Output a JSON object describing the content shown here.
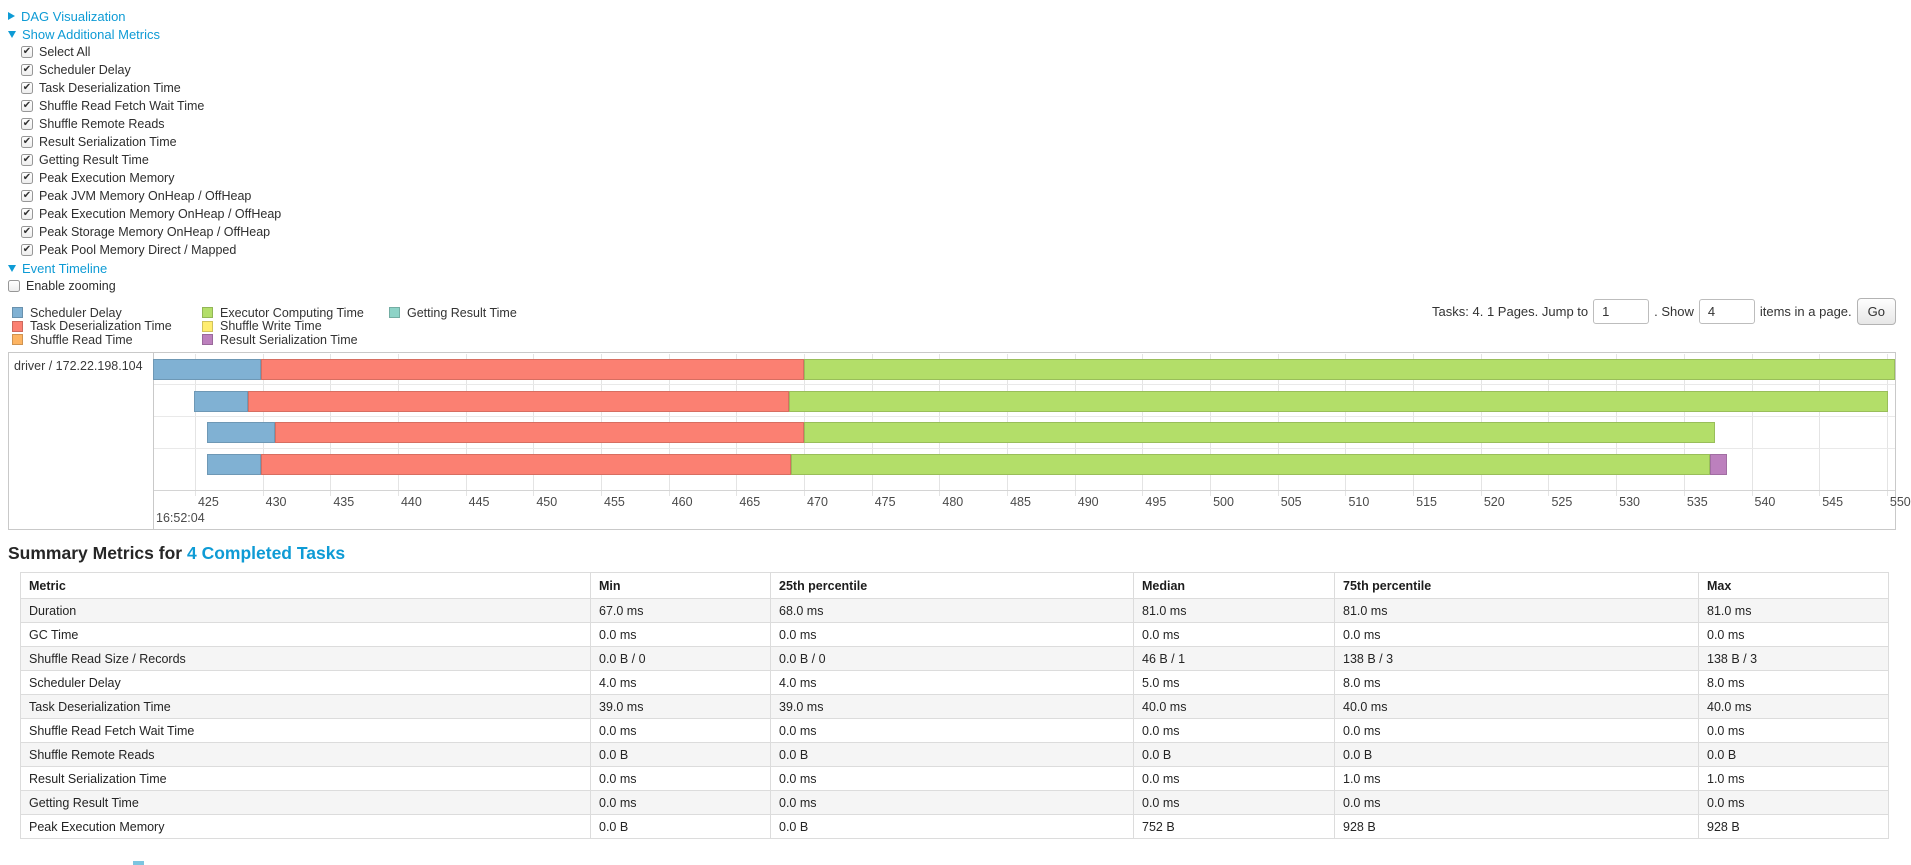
{
  "colors": {
    "link": "#0e9bd5",
    "scheduler_delay": "#80B1D3",
    "task_deserialization": "#FB8072",
    "shuffle_read": "#FDB462",
    "executor_computing": "#B3DE69",
    "shuffle_write": "#FFED6F",
    "result_serialization": "#BC80BD",
    "getting_result": "#8DD3C7"
  },
  "controls": {
    "dag_label": "DAG Visualization",
    "metrics_label": "Show Additional Metrics",
    "event_timeline_label": "Event Timeline",
    "enable_zooming": {
      "label": "Enable zooming",
      "checked": false
    },
    "metric_checkboxes": [
      {
        "label": "Select All",
        "checked": true
      },
      {
        "label": "Scheduler Delay",
        "checked": true
      },
      {
        "label": "Task Deserialization Time",
        "checked": true
      },
      {
        "label": "Shuffle Read Fetch Wait Time",
        "checked": true
      },
      {
        "label": "Shuffle Remote Reads",
        "checked": true
      },
      {
        "label": "Result Serialization Time",
        "checked": true
      },
      {
        "label": "Getting Result Time",
        "checked": true
      },
      {
        "label": "Peak Execution Memory",
        "checked": true
      },
      {
        "label": "Peak JVM Memory OnHeap / OffHeap",
        "checked": true
      },
      {
        "label": "Peak Execution Memory OnHeap / OffHeap",
        "checked": true
      },
      {
        "label": "Peak Storage Memory OnHeap / OffHeap",
        "checked": true
      },
      {
        "label": "Peak Pool Memory Direct / Mapped",
        "checked": true
      }
    ]
  },
  "legend": {
    "columns": [
      {
        "items": [
          {
            "label": "Scheduler Delay",
            "color_key": "scheduler_delay"
          },
          {
            "label": "Task Deserialization Time",
            "color_key": "task_deserialization"
          },
          {
            "label": "Shuffle Read Time",
            "color_key": "shuffle_read"
          }
        ]
      },
      {
        "items": [
          {
            "label": "Executor Computing Time",
            "color_key": "executor_computing"
          },
          {
            "label": "Shuffle Write Time",
            "color_key": "shuffle_write"
          },
          {
            "label": "Result Serialization Time",
            "color_key": "result_serialization"
          }
        ]
      },
      {
        "items": [
          {
            "label": "Getting Result Time",
            "color_key": "getting_result"
          }
        ]
      }
    ]
  },
  "pagination": {
    "text_before": "Tasks: 4. 1 Pages. Jump to",
    "jump_value": "1",
    "text_mid": ". Show",
    "show_value": "4",
    "text_after": "items in a page.",
    "go_label": "Go"
  },
  "chart_data": {
    "type": "timeline",
    "title": "Event Timeline",
    "group_label": "driver / 172.22.198.104",
    "time_base": "16:52:04",
    "x_unit": "ms after 16:52:04",
    "x_window": [
      421.9,
      550.6
    ],
    "ticks": [
      425,
      430,
      435,
      440,
      445,
      450,
      455,
      460,
      465,
      470,
      475,
      480,
      485,
      490,
      495,
      500,
      505,
      510,
      515,
      520,
      525,
      530,
      535,
      540,
      545,
      550
    ],
    "tasks": [
      {
        "segments": [
          {
            "name": "scheduler_delay",
            "start": 421.9,
            "end": 429.9
          },
          {
            "name": "task_deserialization",
            "start": 429.9,
            "end": 470.0
          },
          {
            "name": "executor_computing",
            "start": 470.0,
            "end": 550.6
          }
        ]
      },
      {
        "segments": [
          {
            "name": "scheduler_delay",
            "start": 424.9,
            "end": 428.9
          },
          {
            "name": "task_deserialization",
            "start": 428.9,
            "end": 468.9
          },
          {
            "name": "executor_computing",
            "start": 468.9,
            "end": 550.1
          }
        ]
      },
      {
        "segments": [
          {
            "name": "scheduler_delay",
            "start": 425.9,
            "end": 430.9
          },
          {
            "name": "task_deserialization",
            "start": 430.9,
            "end": 470.0
          },
          {
            "name": "executor_computing",
            "start": 470.0,
            "end": 537.3
          }
        ]
      },
      {
        "segments": [
          {
            "name": "scheduler_delay",
            "start": 425.9,
            "end": 429.9
          },
          {
            "name": "task_deserialization",
            "start": 429.9,
            "end": 469.0
          },
          {
            "name": "executor_computing",
            "start": 469.0,
            "end": 536.9
          },
          {
            "name": "result_serialization",
            "start": 536.9,
            "end": 538.2
          }
        ]
      }
    ]
  },
  "summary": {
    "heading_prefix": "Summary Metrics for",
    "heading_link": "4 Completed Tasks",
    "table": {
      "columns": [
        "Metric",
        "Min",
        "25th percentile",
        "Median",
        "75th percentile",
        "Max"
      ],
      "rows": [
        {
          "metric": "Duration",
          "values": [
            "67.0 ms",
            "68.0 ms",
            "81.0 ms",
            "81.0 ms",
            "81.0 ms"
          ]
        },
        {
          "metric": "GC Time",
          "values": [
            "0.0 ms",
            "0.0 ms",
            "0.0 ms",
            "0.0 ms",
            "0.0 ms"
          ]
        },
        {
          "metric": "Shuffle Read Size / Records",
          "values": [
            "0.0 B / 0",
            "0.0 B / 0",
            "46 B / 1",
            "138 B / 3",
            "138 B / 3"
          ]
        },
        {
          "metric": "Scheduler Delay",
          "values": [
            "4.0 ms",
            "4.0 ms",
            "5.0 ms",
            "8.0 ms",
            "8.0 ms"
          ]
        },
        {
          "metric": "Task Deserialization Time",
          "values": [
            "39.0 ms",
            "39.0 ms",
            "40.0 ms",
            "40.0 ms",
            "40.0 ms"
          ]
        },
        {
          "metric": "Shuffle Read Fetch Wait Time",
          "values": [
            "0.0 ms",
            "0.0 ms",
            "0.0 ms",
            "0.0 ms",
            "0.0 ms"
          ]
        },
        {
          "metric": "Shuffle Remote Reads",
          "values": [
            "0.0 B",
            "0.0 B",
            "0.0 B",
            "0.0 B",
            "0.0 B"
          ]
        },
        {
          "metric": "Result Serialization Time",
          "values": [
            "0.0 ms",
            "0.0 ms",
            "0.0 ms",
            "1.0 ms",
            "1.0 ms"
          ]
        },
        {
          "metric": "Getting Result Time",
          "values": [
            "0.0 ms",
            "0.0 ms",
            "0.0 ms",
            "0.0 ms",
            "0.0 ms"
          ]
        },
        {
          "metric": "Peak Execution Memory",
          "values": [
            "0.0 B",
            "0.0 B",
            "752 B",
            "928 B",
            "928 B"
          ]
        }
      ]
    }
  }
}
